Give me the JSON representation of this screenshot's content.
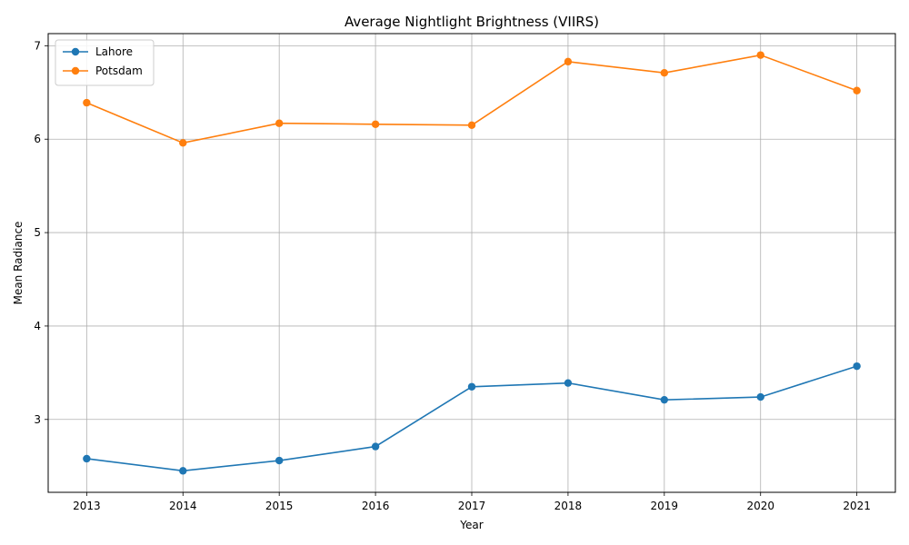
{
  "chart_data": {
    "type": "line",
    "title": "Average Nightlight Brightness (VIIRS)",
    "xlabel": "Year",
    "ylabel": "Mean Radiance",
    "x": [
      2013,
      2014,
      2015,
      2016,
      2017,
      2018,
      2019,
      2020,
      2021
    ],
    "xlim": [
      2012.6,
      2021.4
    ],
    "ylim": [
      2.22,
      7.13
    ],
    "yticks": [
      3,
      4,
      5,
      6,
      7
    ],
    "grid": true,
    "legend_position": "top-left",
    "series": [
      {
        "name": "Lahore",
        "color": "#1f77b4",
        "marker": "circle",
        "values": [
          2.58,
          2.45,
          2.56,
          2.71,
          3.35,
          3.39,
          3.21,
          3.24,
          3.57
        ]
      },
      {
        "name": "Potsdam",
        "color": "#ff7f0e",
        "marker": "circle",
        "values": [
          6.39,
          5.96,
          6.17,
          6.16,
          6.15,
          6.83,
          6.71,
          6.9,
          6.52
        ]
      }
    ]
  }
}
